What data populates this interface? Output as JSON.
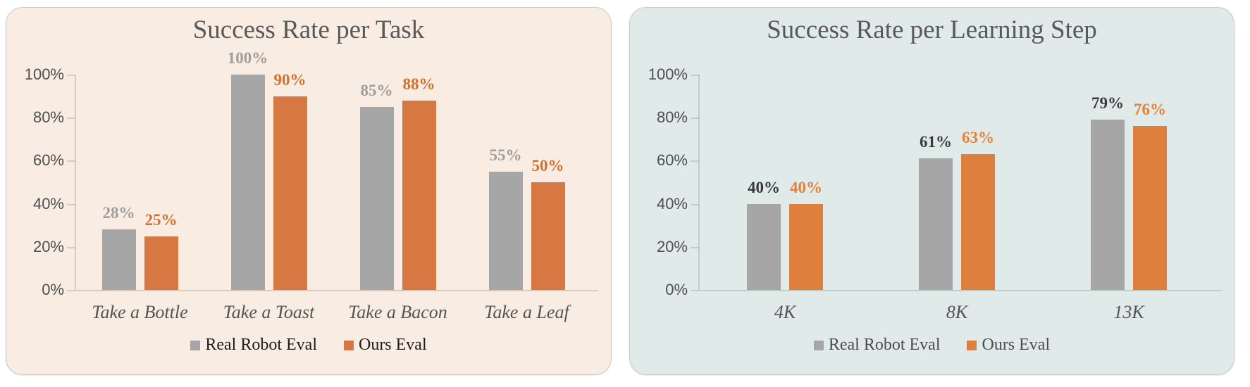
{
  "page": {
    "background": "#FFFFFF"
  },
  "chart_data": [
    {
      "type": "bar",
      "title": "Success Rate per Task",
      "categories": [
        "Take a Bottle",
        "Take a Toast",
        "Take a Bacon",
        "Take a Leaf"
      ],
      "series": [
        {
          "name": "Real Robot Eval",
          "values": [
            28,
            100,
            85,
            55
          ],
          "bar_color": "#A6A6A6",
          "value_label_color": "#9E9E9E"
        },
        {
          "name": "Ours Eval",
          "values": [
            25,
            90,
            88,
            50
          ],
          "bar_color": "#D77842",
          "value_label_color": "#D2712F"
        }
      ],
      "value_label_format": "percent",
      "xlabel": "",
      "ylabel": "",
      "ylim": [
        0,
        100
      ],
      "yticks": [
        {
          "value": 0,
          "label": "0%"
        },
        {
          "value": 20,
          "label": "20%"
        },
        {
          "value": 40,
          "label": "40%"
        },
        {
          "value": 60,
          "label": "60%"
        },
        {
          "value": 80,
          "label": "80%"
        },
        {
          "value": 100,
          "label": "100%"
        }
      ],
      "grid": false,
      "legend_position": "bottom",
      "panel_bg": "#F9ECE2",
      "axis_line_color": "rgba(100,90,80,0.22)",
      "legend_text_color": "#1C1C1C",
      "axis_text_color": "#4F4F4F",
      "title_color": "#595959",
      "category_label_color": "#545454"
    },
    {
      "type": "bar",
      "title": "Success Rate per Learning Step",
      "categories": [
        "4K",
        "8K",
        "13K"
      ],
      "series": [
        {
          "name": "Real Robot Eval",
          "values": [
            40,
            61,
            79
          ],
          "bar_color": "#A6A6A6",
          "value_label_color": "#3A3A3A"
        },
        {
          "name": "Ours Eval",
          "values": [
            40,
            63,
            76
          ],
          "bar_color": "#DE7F3E",
          "value_label_color": "#E2813B"
        }
      ],
      "value_label_format": "percent",
      "xlabel": "",
      "ylabel": "",
      "ylim": [
        0,
        100
      ],
      "yticks": [
        {
          "value": 0,
          "label": "0%"
        },
        {
          "value": 20,
          "label": "20%"
        },
        {
          "value": 40,
          "label": "40%"
        },
        {
          "value": 60,
          "label": "60%"
        },
        {
          "value": 80,
          "label": "80%"
        },
        {
          "value": 100,
          "label": "100%"
        }
      ],
      "grid": false,
      "legend_position": "bottom",
      "panel_bg": "#E0EAE8",
      "axis_line_color": "rgba(70,95,90,0.20)",
      "legend_text_color": "#4D4D4D",
      "axis_text_color": "#4F4F4F",
      "title_color": "#595959",
      "category_label_color": "#545454"
    }
  ]
}
